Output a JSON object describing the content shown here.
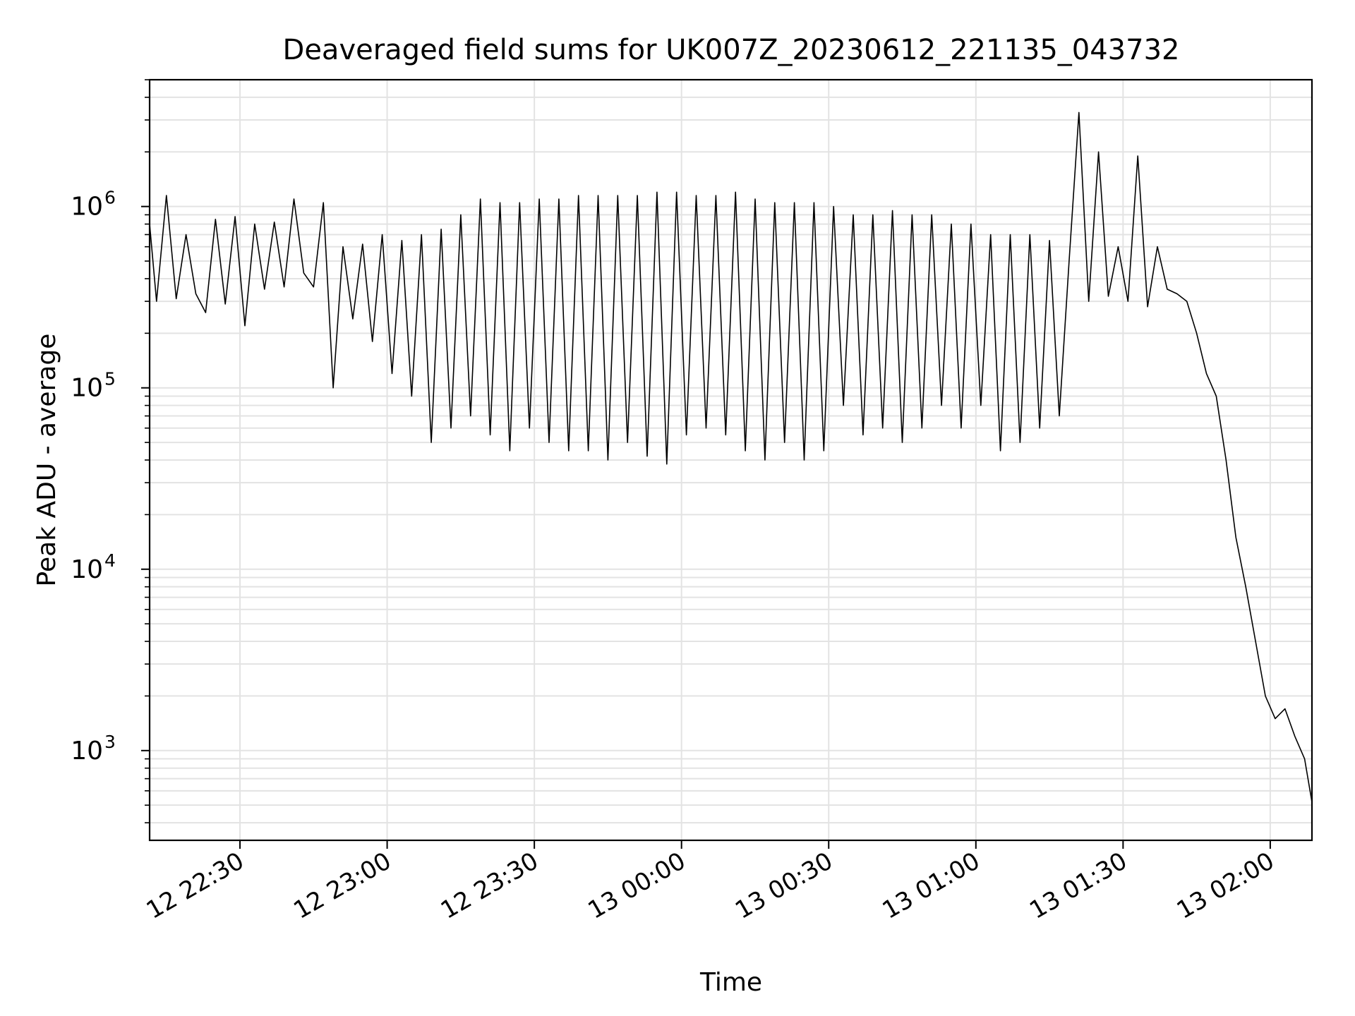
{
  "colors": {
    "line": "#000000",
    "grid": "#e3e3e3",
    "axes": "#000000",
    "background": "#ffffff"
  },
  "chart_data": {
    "type": "line",
    "title": "Deaveraged field sums for UK007Z_20230612_221135_043732",
    "xlabel": "Time",
    "ylabel": "Peak ADU - average",
    "yscale": "log",
    "grid": true,
    "xlim": [
      "2023-06-12 22:11:35",
      "2023-06-13 02:08:30"
    ],
    "ylim": [
      320,
      5000000
    ],
    "xticks": [
      {
        "value": "2023-06-12 22:30",
        "label": "12 22:30"
      },
      {
        "value": "2023-06-12 23:00",
        "label": "12 23:00"
      },
      {
        "value": "2023-06-12 23:30",
        "label": "12 23:30"
      },
      {
        "value": "2023-06-13 00:00",
        "label": "13 00:00"
      },
      {
        "value": "2023-06-13 00:30",
        "label": "13 00:30"
      },
      {
        "value": "2023-06-13 01:00",
        "label": "13 01:00"
      },
      {
        "value": "2023-06-13 01:30",
        "label": "13 01:30"
      },
      {
        "value": "2023-06-13 02:00",
        "label": "13 02:00"
      }
    ],
    "yticks": [
      {
        "value": 1000,
        "base": "10",
        "exp": "3"
      },
      {
        "value": 10000,
        "base": "10",
        "exp": "4"
      },
      {
        "value": 100000,
        "base": "10",
        "exp": "5"
      },
      {
        "value": 1000000,
        "base": "10",
        "exp": "6"
      }
    ],
    "series": [
      {
        "x": [
          "2023-06-12 22:11:35",
          "2023-06-12 22:13",
          "2023-06-12 22:15",
          "2023-06-12 22:17",
          "2023-06-12 22:19",
          "2023-06-12 22:21",
          "2023-06-12 22:23",
          "2023-06-12 22:25",
          "2023-06-12 22:27",
          "2023-06-12 22:29",
          "2023-06-12 22:31",
          "2023-06-12 22:33",
          "2023-06-12 22:35",
          "2023-06-12 22:37",
          "2023-06-12 22:39",
          "2023-06-12 22:41",
          "2023-06-12 22:43",
          "2023-06-12 22:45",
          "2023-06-12 22:47",
          "2023-06-12 22:49",
          "2023-06-12 22:51",
          "2023-06-12 22:53",
          "2023-06-12 22:55",
          "2023-06-12 22:57",
          "2023-06-12 22:59",
          "2023-06-12 23:01",
          "2023-06-12 23:03",
          "2023-06-12 23:05",
          "2023-06-12 23:07",
          "2023-06-12 23:09",
          "2023-06-12 23:11",
          "2023-06-12 23:13",
          "2023-06-12 23:15",
          "2023-06-12 23:17",
          "2023-06-12 23:19",
          "2023-06-12 23:21",
          "2023-06-12 23:23",
          "2023-06-12 23:25",
          "2023-06-12 23:27",
          "2023-06-12 23:29",
          "2023-06-12 23:31",
          "2023-06-12 23:33",
          "2023-06-12 23:35",
          "2023-06-12 23:37",
          "2023-06-12 23:39",
          "2023-06-12 23:41",
          "2023-06-12 23:43",
          "2023-06-12 23:45",
          "2023-06-12 23:47",
          "2023-06-12 23:49",
          "2023-06-12 23:51",
          "2023-06-12 23:53",
          "2023-06-12 23:55",
          "2023-06-12 23:57",
          "2023-06-12 23:59",
          "2023-06-13 00:01",
          "2023-06-13 00:03",
          "2023-06-13 00:05",
          "2023-06-13 00:07",
          "2023-06-13 00:09",
          "2023-06-13 00:11",
          "2023-06-13 00:13",
          "2023-06-13 00:15",
          "2023-06-13 00:17",
          "2023-06-13 00:19",
          "2023-06-13 00:21",
          "2023-06-13 00:23",
          "2023-06-13 00:25",
          "2023-06-13 00:27",
          "2023-06-13 00:29",
          "2023-06-13 00:31",
          "2023-06-13 00:33",
          "2023-06-13 00:35",
          "2023-06-13 00:37",
          "2023-06-13 00:39",
          "2023-06-13 00:41",
          "2023-06-13 00:43",
          "2023-06-13 00:45",
          "2023-06-13 00:47",
          "2023-06-13 00:49",
          "2023-06-13 00:51",
          "2023-06-13 00:53",
          "2023-06-13 00:55",
          "2023-06-13 00:57",
          "2023-06-13 00:59",
          "2023-06-13 01:01",
          "2023-06-13 01:03",
          "2023-06-13 01:05",
          "2023-06-13 01:07",
          "2023-06-13 01:09",
          "2023-06-13 01:11",
          "2023-06-13 01:13",
          "2023-06-13 01:15",
          "2023-06-13 01:17",
          "2023-06-13 01:19",
          "2023-06-13 01:21",
          "2023-06-13 01:23",
          "2023-06-13 01:25",
          "2023-06-13 01:27",
          "2023-06-13 01:29",
          "2023-06-13 01:31",
          "2023-06-13 01:33",
          "2023-06-13 01:35",
          "2023-06-13 01:37",
          "2023-06-13 01:39",
          "2023-06-13 01:41",
          "2023-06-13 01:43",
          "2023-06-13 01:45",
          "2023-06-13 01:47",
          "2023-06-13 01:49",
          "2023-06-13 01:51",
          "2023-06-13 01:53",
          "2023-06-13 01:55",
          "2023-06-13 01:57",
          "2023-06-13 01:59",
          "2023-06-13 02:01",
          "2023-06-13 02:03",
          "2023-06-13 02:05",
          "2023-06-13 02:07",
          "2023-06-13 02:08:30"
        ],
        "y": [
          800000,
          300000,
          1150000,
          310000,
          700000,
          330000,
          260000,
          850000,
          290000,
          880000,
          220000,
          800000,
          350000,
          820000,
          360000,
          1100000,
          430000,
          360000,
          1050000,
          100000,
          600000,
          240000,
          620000,
          180000,
          700000,
          120000,
          650000,
          90000,
          700000,
          50000,
          750000,
          60000,
          900000,
          70000,
          1100000,
          55000,
          1050000,
          45000,
          1050000,
          60000,
          1100000,
          50000,
          1100000,
          45000,
          1150000,
          45000,
          1150000,
          40000,
          1150000,
          50000,
          1150000,
          42000,
          1200000,
          38000,
          1200000,
          55000,
          1150000,
          60000,
          1150000,
          55000,
          1200000,
          45000,
          1100000,
          40000,
          1050000,
          50000,
          1050000,
          40000,
          1050000,
          45000,
          1000000,
          80000,
          900000,
          55000,
          900000,
          60000,
          950000,
          50000,
          900000,
          60000,
          900000,
          80000,
          800000,
          60000,
          800000,
          80000,
          700000,
          45000,
          700000,
          50000,
          700000,
          60000,
          650000,
          70000,
          500000,
          3300000,
          300000,
          2000000,
          320000,
          600000,
          300000,
          1900000,
          280000,
          600000,
          350000,
          330000,
          300000,
          200000,
          120000,
          90000,
          40000,
          15000,
          8000,
          4000,
          2000,
          1500,
          1700,
          1200,
          900,
          520
        ],
        "spikes": true
      }
    ]
  }
}
